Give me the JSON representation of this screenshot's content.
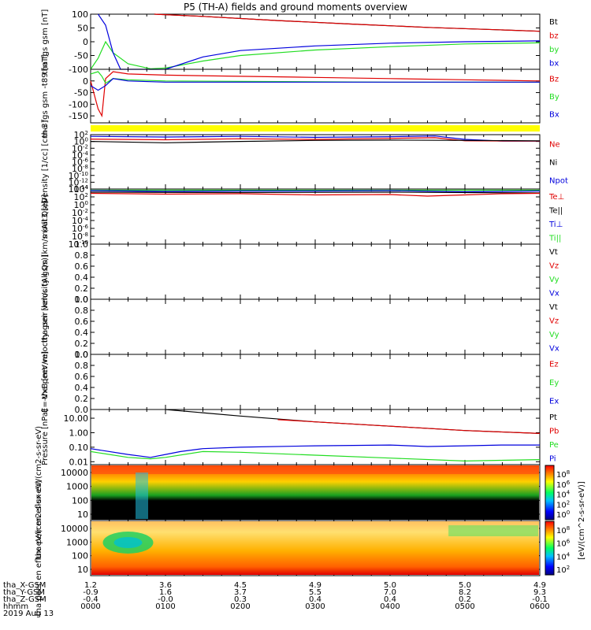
{
  "title": "P5 (TH-A) fields and ground moments overview",
  "colors": {
    "black": "#000000",
    "red": "#e00000",
    "green": "#22dd22",
    "blue": "#0000dd",
    "yellow": "#ffff00"
  },
  "chart_data": [
    {
      "type": "line",
      "id": "fgs",
      "ylabel": "tha fgs gsm [nT]",
      "ylim": [
        -100,
        100
      ],
      "yticks": [
        "100",
        "50",
        "0",
        "-50",
        "-100"
      ],
      "legend": [
        "Bt",
        "bz",
        "by",
        "bx"
      ],
      "legend_colors": [
        "black",
        "red",
        "green",
        "blue"
      ],
      "series": [
        {
          "name": "Bt",
          "color": "black",
          "x": [
            0.85,
            1.5,
            2.5,
            3.5,
            4.5,
            5.5,
            6.0
          ],
          "y": [
            100,
            92,
            77,
            64,
            52,
            43,
            38
          ]
        },
        {
          "name": "bz",
          "color": "red",
          "x": [
            0.85,
            1.5,
            2.5,
            3.5,
            4.5,
            5.5,
            6.0
          ],
          "y": [
            100,
            92,
            77,
            64,
            52,
            43,
            38
          ]
        },
        {
          "name": "by",
          "color": "green",
          "x": [
            0.0,
            0.1,
            0.2,
            0.3,
            0.5,
            0.8,
            1.0,
            1.5,
            2.0,
            3.0,
            4.0,
            5.0,
            6.0
          ],
          "y": [
            -100,
            -60,
            0,
            -40,
            -80,
            -98,
            -95,
            -70,
            -50,
            -30,
            -18,
            -8,
            -4
          ]
        },
        {
          "name": "bx",
          "color": "blue",
          "x": [
            0.1,
            0.2,
            0.3,
            0.4,
            1.0,
            1.5,
            2.0,
            3.0,
            4.0,
            5.0,
            6.0
          ],
          "y": [
            100,
            60,
            -40,
            -100,
            -100,
            -55,
            -32,
            -15,
            -5,
            0,
            3
          ]
        }
      ]
    },
    {
      "type": "line",
      "id": "fgs-t89",
      "ylabel": "tha fgs gsm -t89 [nT]",
      "ylim": [
        -180,
        50
      ],
      "yticks": [
        "0",
        "-50",
        "-100",
        "-150"
      ],
      "legend": [
        "Bz",
        "By",
        "Bx"
      ],
      "legend_colors": [
        "red",
        "green",
        "blue"
      ],
      "series": [
        {
          "name": "Bz",
          "color": "red",
          "x": [
            0.0,
            0.1,
            0.15,
            0.2,
            0.3,
            0.5,
            1.0,
            2.0,
            3.0,
            4.0,
            5.0,
            6.0
          ],
          "y": [
            0,
            -120,
            -150,
            10,
            40,
            30,
            25,
            20,
            15,
            10,
            5,
            0
          ]
        },
        {
          "name": "By",
          "color": "green",
          "x": [
            0.0,
            0.1,
            0.15,
            0.2,
            0.3,
            0.5,
            1.0,
            2.0,
            4.0,
            6.0
          ],
          "y": [
            30,
            40,
            20,
            -10,
            10,
            5,
            0,
            -2,
            -5,
            -5
          ]
        },
        {
          "name": "Bx",
          "color": "blue",
          "x": [
            0.0,
            0.1,
            0.2,
            0.3,
            0.5,
            1.0,
            3.0,
            6.0
          ],
          "y": [
            -20,
            -40,
            -20,
            10,
            0,
            -5,
            -5,
            -5
          ]
        }
      ]
    },
    {
      "type": "line",
      "id": "density",
      "ylabel": "Density [1/cc] [cm-3]",
      "scale": "log",
      "ylim": [
        -14,
        2
      ],
      "yticks": [
        "10^2",
        "10^0",
        "10^-2",
        "10^-4",
        "10^-6",
        "10^-8",
        "10^-10",
        "10^-12",
        "10^-14"
      ],
      "legend": [
        "Ne",
        "Ni",
        "Npot"
      ],
      "legend_colors": [
        "red",
        "black",
        "blue"
      ],
      "series": [
        {
          "name": "Npot",
          "color": "blue",
          "x": [
            0.0,
            1.0,
            2.0,
            3.0,
            4.0,
            4.6,
            5.0,
            5.5,
            6.0
          ],
          "y": [
            1.5,
            1.3,
            1.5,
            1.2,
            1.4,
            1.6,
            0.6,
            0.1,
            0.1
          ]
        },
        {
          "name": "Ne",
          "color": "red",
          "x": [
            0.0,
            1.0,
            2.0,
            3.0,
            4.0,
            4.6,
            5.0,
            6.0
          ],
          "y": [
            0.7,
            0.5,
            0.8,
            0.6,
            0.9,
            1.1,
            0.2,
            0.1
          ]
        },
        {
          "name": "Ni",
          "color": "black",
          "x": [
            0.0,
            1.0,
            2.0,
            3.0,
            4.0,
            5.0,
            6.0
          ],
          "y": [
            0,
            -0.4,
            0.0,
            0.3,
            0.4,
            0.3,
            0.2
          ]
        }
      ]
    },
    {
      "type": "line",
      "id": "temperature",
      "ylabel": "moat3 [eV]",
      "scale": "log",
      "ylim": [
        -10,
        4
      ],
      "yticks": [
        "10^4",
        "10^2",
        "10^0",
        "10^-2",
        "10^-4",
        "10^-6",
        "10^-8",
        "10^-10"
      ],
      "legend": [
        "Te⊥",
        "Te||",
        "Ti⊥",
        "Ti||"
      ],
      "legend_colors": [
        "red",
        "black",
        "blue",
        "green"
      ],
      "series": [
        {
          "name": "Ti||",
          "color": "green",
          "x": [
            0.0,
            2.0,
            4.0,
            6.0
          ],
          "y": [
            3.7,
            3.7,
            3.7,
            3.7
          ]
        },
        {
          "name": "Ti⊥",
          "color": "blue",
          "x": [
            0.0,
            1.0,
            2.0,
            3.0,
            4.0,
            5.0,
            6.0
          ],
          "y": [
            3.6,
            3.4,
            3.5,
            3.5,
            3.6,
            3.3,
            3.5
          ]
        },
        {
          "name": "Te||",
          "color": "black",
          "x": [
            0.0,
            2.0,
            4.0,
            6.0
          ],
          "y": [
            3.2,
            3.1,
            3.2,
            3.0
          ]
        },
        {
          "name": "Te⊥",
          "color": "red",
          "x": [
            0.0,
            1.0,
            2.0,
            3.0,
            4.0,
            4.5,
            5.0,
            5.5,
            6.0
          ],
          "y": [
            2.9,
            2.7,
            2.8,
            2.5,
            2.6,
            2.2,
            2.5,
            2.8,
            2.9
          ]
        }
      ]
    },
    {
      "type": "line",
      "id": "peir-velocity",
      "ylabel": "tha peir velocity gsm [km/s (All Qs)]",
      "ylim": [
        0,
        1
      ],
      "yticks": [
        "1.0",
        "0.8",
        "0.6",
        "0.4",
        "0.2",
        "0.0"
      ],
      "legend": [
        "Vt",
        "Vz",
        "Vy",
        "Vx"
      ],
      "legend_colors": [
        "black",
        "red",
        "green",
        "blue"
      ],
      "series": []
    },
    {
      "type": "line",
      "id": "peer-velocity",
      "ylabel": "tha peer velocity gsm [km/s (All Qs)]",
      "ylim": [
        0,
        1
      ],
      "yticks": [
        "1.0",
        "0.8",
        "0.6",
        "0.4",
        "0.2",
        "0.0"
      ],
      "legend": [
        "Vt",
        "Vz",
        "Vy",
        "Vx"
      ],
      "legend_colors": [
        "black",
        "red",
        "green",
        "blue"
      ],
      "series": []
    },
    {
      "type": "line",
      "id": "efield",
      "ylabel": "E=-VxB [mV/m]",
      "ylim": [
        0,
        1
      ],
      "yticks": [
        "1.0",
        "0.8",
        "0.6",
        "0.4",
        "0.2",
        "0.0"
      ],
      "legend": [
        "Ez",
        "Ey",
        "Ex"
      ],
      "legend_colors": [
        "red",
        "green",
        "blue"
      ],
      "series": []
    },
    {
      "type": "line",
      "id": "pressure",
      "ylabel": "Pressure [nPa]",
      "scale": "log",
      "ylim": [
        -2.2,
        1.6
      ],
      "yticks": [
        "10.00",
        "1.00",
        "0.10",
        "0.01"
      ],
      "legend": [
        "Pt",
        "Pb",
        "Pe",
        "Pi"
      ],
      "legend_colors": [
        "black",
        "red",
        "green",
        "blue"
      ],
      "series": [
        {
          "name": "Pt",
          "color": "black",
          "x": [
            1.0,
            2.0,
            3.0,
            4.0,
            5.0,
            6.0
          ],
          "y": [
            1.6,
            1.15,
            0.75,
            0.45,
            0.15,
            -0.05
          ]
        },
        {
          "name": "Pb",
          "color": "red",
          "x": [
            2.5,
            3.0,
            4.0,
            5.0,
            6.0
          ],
          "y": [
            0.9,
            0.75,
            0.45,
            0.15,
            -0.05
          ]
        },
        {
          "name": "Pi",
          "color": "blue",
          "x": [
            0.0,
            0.5,
            0.8,
            1.0,
            1.2,
            1.5,
            2.0,
            3.0,
            4.0,
            4.5,
            5.0,
            5.5,
            6.0
          ],
          "y": [
            -1.1,
            -1.5,
            -1.7,
            -1.5,
            -1.3,
            -1.1,
            -1.0,
            -0.9,
            -0.85,
            -0.95,
            -0.9,
            -0.85,
            -0.85
          ]
        },
        {
          "name": "Pe",
          "color": "green",
          "x": [
            0.0,
            0.5,
            0.8,
            1.0,
            1.5,
            2.0,
            3.0,
            4.0,
            5.0,
            5.5,
            6.0
          ],
          "y": [
            -1.3,
            -1.7,
            -1.8,
            -1.7,
            -1.3,
            -1.35,
            -1.55,
            -1.75,
            -1.95,
            -1.9,
            -1.85
          ]
        }
      ]
    },
    {
      "type": "heatmap",
      "id": "peir-eflux",
      "ylabel": "tha peir en eflux eV/(cm2-s-sr-eV)",
      "scale": "log",
      "yticks": [
        "10000",
        "1000",
        "100",
        "10"
      ],
      "colorbar_ticks": [
        "10^8",
        "10^6",
        "10^4",
        "10^2",
        "10^0"
      ],
      "colorbar_label": "[eV/(cm^2-s-sr-eV)]"
    },
    {
      "type": "heatmap",
      "id": "peer-eflux",
      "ylabel": "tha peer en eflux eV/(cm2-s-sr-eV)",
      "scale": "log",
      "yticks": [
        "10000",
        "1000",
        "100",
        "10"
      ],
      "colorbar_ticks": [
        "10^8",
        "10^6",
        "10^4",
        "10^2"
      ],
      "colorbar_label": "[eV/(cm^2-s-sr-eV)]"
    }
  ],
  "xaxis": {
    "labels": [
      "tha_X-GSM",
      "tha_Y-GSM",
      "tha_Z-GSM",
      "hhmm",
      "2019 Aug 13"
    ],
    "rows": [
      [
        "1.2",
        "3.6",
        "4.5",
        "4.9",
        "5.0",
        "5.0",
        "4.9"
      ],
      [
        "-0.9",
        "1.6",
        "3.7",
        "5.5",
        "7.0",
        "8.2",
        "9.3"
      ],
      [
        "-0.4",
        "-0.0",
        "0.3",
        "0.4",
        "0.4",
        "0.2",
        "-0.1"
      ],
      [
        "0000",
        "0100",
        "0200",
        "0300",
        "0400",
        "0500",
        "0600"
      ]
    ]
  },
  "colorbar_label": "[eV/(cm^2-s-sr-eV)]"
}
